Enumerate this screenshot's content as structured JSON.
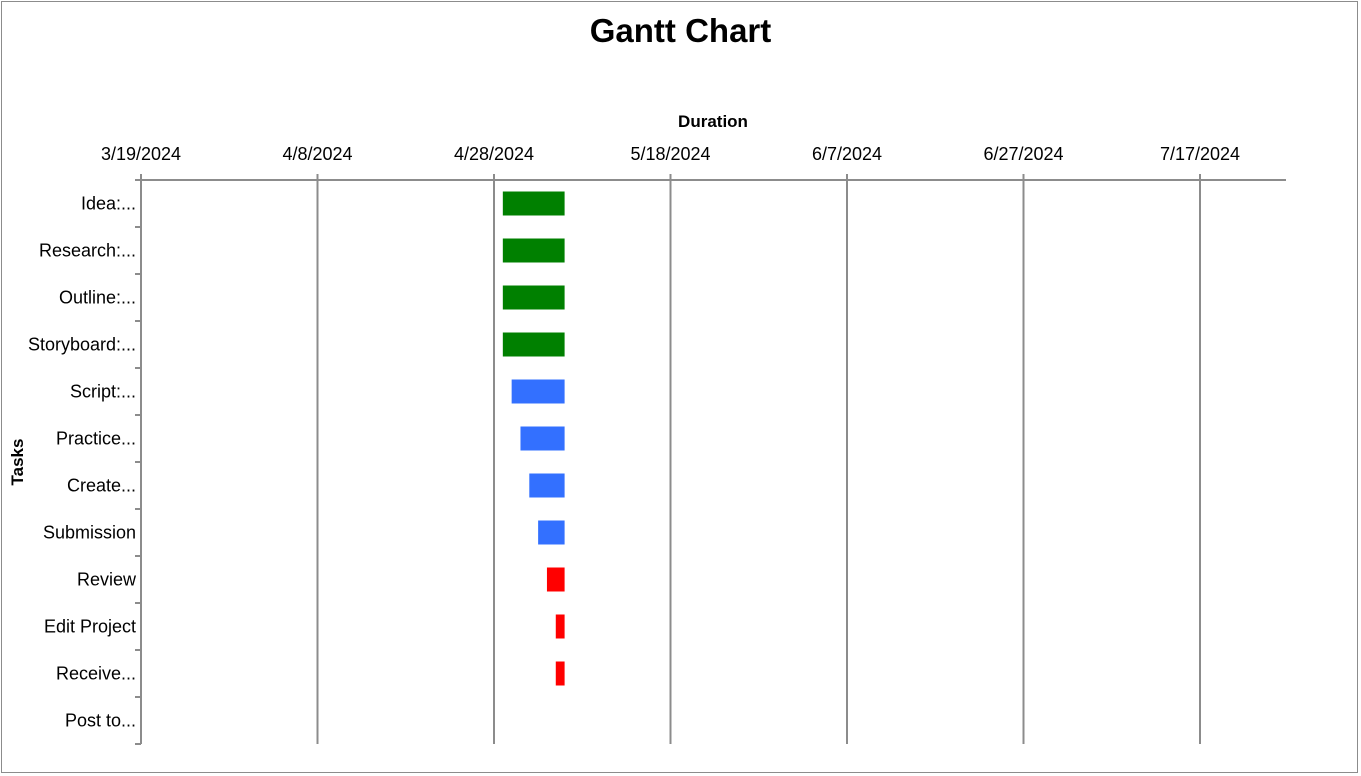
{
  "chart_data": {
    "type": "bar",
    "subtype": "gantt",
    "title": "Gantt Chart",
    "xlabel": "Duration",
    "ylabel": "Tasks",
    "x_axis_position": "top",
    "x_tick_labels": [
      "3/19/2024",
      "4/8/2024",
      "4/28/2024",
      "5/18/2024",
      "6/7/2024",
      "6/27/2024",
      "7/17/2024"
    ],
    "x_ticks": [
      "2024-03-19",
      "2024-04-08",
      "2024-04-28",
      "2024-05-18",
      "2024-06-07",
      "2024-06-27",
      "2024-07-17"
    ],
    "xlim": [
      "2024-03-19",
      "2024-08-05"
    ],
    "grid": "vertical",
    "legend": "none",
    "tasks": [
      {
        "label": "Idea:...",
        "start": "2024-04-29",
        "end": "2024-05-06",
        "color": "#008000"
      },
      {
        "label": "Research:...",
        "start": "2024-04-29",
        "end": "2024-05-06",
        "color": "#008000"
      },
      {
        "label": "Outline:...",
        "start": "2024-04-29",
        "end": "2024-05-06",
        "color": "#008000"
      },
      {
        "label": "Storyboard:...",
        "start": "2024-04-29",
        "end": "2024-05-06",
        "color": "#008000"
      },
      {
        "label": "Script:...",
        "start": "2024-04-30",
        "end": "2024-05-06",
        "color": "#3370ff"
      },
      {
        "label": "Practice...",
        "start": "2024-05-01",
        "end": "2024-05-06",
        "color": "#3370ff"
      },
      {
        "label": "Create...",
        "start": "2024-05-02",
        "end": "2024-05-06",
        "color": "#3370ff"
      },
      {
        "label": "Submission",
        "start": "2024-05-03",
        "end": "2024-05-06",
        "color": "#3370ff"
      },
      {
        "label": "Review",
        "start": "2024-05-04",
        "end": "2024-05-06",
        "color": "#ff0000"
      },
      {
        "label": "Edit Project",
        "start": "2024-05-05",
        "end": "2024-05-06",
        "color": "#ff0000"
      },
      {
        "label": "Receive...",
        "start": "2024-05-05",
        "end": "2024-05-06",
        "color": "#ff0000"
      },
      {
        "label": "Post to...",
        "start": null,
        "end": null,
        "color": null
      }
    ]
  }
}
